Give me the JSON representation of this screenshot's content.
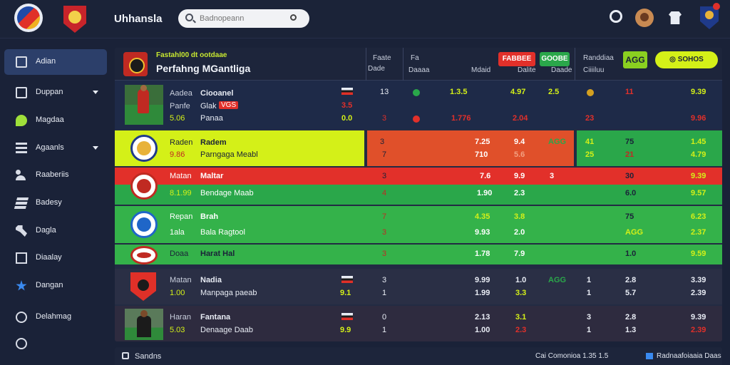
{
  "app": {
    "title": "Uhhansla"
  },
  "search": {
    "placeholder": "Badnopeann"
  },
  "icons": {
    "settings": "settings-icon",
    "avatar": "user-avatar",
    "kit": "shirt-icon",
    "club": "club-crest-icon",
    "search": "search-icon"
  },
  "colors": {
    "accent_yellow": "#d4f018",
    "accent_green": "#2aa74a",
    "accent_red": "#e2302a",
    "bg": "#1a2238"
  },
  "sidebar": {
    "items": [
      {
        "label": "Adian",
        "icon": "inbox-icon",
        "active": true
      },
      {
        "label": "Duppan",
        "icon": "box-icon",
        "expandable": true
      },
      {
        "label": "Magdaa",
        "icon": "tag-icon"
      },
      {
        "label": "Agaanls",
        "icon": "list-icon",
        "expandable": true
      },
      {
        "label": "Raaberiis",
        "icon": "users-icon"
      },
      {
        "label": "Badesy",
        "icon": "layers-icon"
      },
      {
        "label": "Dagla",
        "icon": "wrench-icon"
      },
      {
        "label": "Diaalay",
        "icon": "document-icon"
      },
      {
        "label": "Dangan",
        "icon": "star-icon"
      },
      {
        "label": "Delahmag",
        "icon": "chat-icon"
      }
    ]
  },
  "header": {
    "subtitle": "Fastahl00 dt ootdaae",
    "title": "Perfahng MGantliga",
    "col1": [
      "Faate",
      "Dade"
    ],
    "col2": [
      "Fa",
      "Daaaa"
    ],
    "col3": "Mdaid",
    "pill_red": "FABBEE",
    "pill_green": "GOOBE",
    "col4": [
      "Dalite",
      "Daade"
    ],
    "col5": [
      "Randdiaa",
      "Ciiiiluu"
    ],
    "agg_label": "AGG",
    "action_label": "SOHOS"
  },
  "rows": [
    {
      "name_a": "Aadea",
      "name_b": "Ciooanel",
      "sub_a": "Panfe",
      "sub_b": "Glak",
      "badge": "VGS",
      "meta_a": "5.06",
      "meta_b": "Panaa",
      "n1": "13",
      "n2": "3",
      "s1a": "1.3.5",
      "s1b": "4.97",
      "s1c": "2.5",
      "s2a": "1.776",
      "s2b": "2.04",
      "r1": "11",
      "r2": "9.39",
      "r3": "23",
      "r4": "9.96",
      "v1": "3.5",
      "v2": "0.0"
    },
    {
      "name_a": "Raden",
      "name_b": "Radem",
      "sub_a": "9.86",
      "sub_b": "Parngaga Meabl",
      "n1": "3",
      "n2": "7",
      "s1a": "7.25",
      "s1b": "9.4",
      "s1c": "AGG",
      "s2a": "710",
      "s2b": "5.6",
      "r0": "41",
      "r1": "75",
      "r2": "1.45",
      "r3": "25",
      "r4": "21",
      "r5": "4.79"
    },
    {
      "name_a": "Matan",
      "name_b": "Maltar",
      "sub_a": "8.1.99",
      "sub_b": "Bendage Maab",
      "n1": "3",
      "n2": "4",
      "s1a": "7.6",
      "s1b": "9.9",
      "s1c": "3",
      "s2a": "1.90",
      "s2b": "2.3",
      "r1": "30",
      "r2": "9.39",
      "r3": "6.0",
      "r4": "9.57"
    },
    {
      "name_a": "Repan",
      "name_b": "Brah",
      "sub_a": "1ala",
      "sub_b": "Bala Ragtool",
      "n1": "7",
      "n2": "3",
      "s1a": "4.35",
      "s1b": "3.8",
      "s2a": "9.93",
      "s2b": "2.0",
      "r1": "75",
      "r2": "6.23",
      "r3": "AGG",
      "r4": "2.37"
    },
    {
      "name_a": "Doaa",
      "name_b": "Harat Hal",
      "n1": "3",
      "s1a": "1.78",
      "s1b": "7.9",
      "r1": "1.0",
      "r2": "9.59"
    },
    {
      "name_a": "Matan",
      "name_b": "Nadia",
      "sub_a": "1.00",
      "sub_b": "Manpaga paeab",
      "v1": "9.1",
      "n1": "3",
      "n2": "1",
      "s1a": "9.99",
      "s1b": "1.0",
      "s1c": "AGG",
      "s2a": "1.99",
      "s2b": "3.3",
      "r0": "1",
      "r1": "2.8",
      "r2": "3.39",
      "r3": "1",
      "r4": "5.7",
      "r5": "2.39"
    },
    {
      "name_a": "Haran",
      "name_b": "Fantana",
      "sub_a": "5.03",
      "sub_b": "Denaage Daab",
      "v1": "9.9",
      "n1": "0",
      "n2": "1",
      "s1a": "2.13",
      "s1b": "3.1",
      "s2a": "1.00",
      "s2b": "2.3",
      "r0": "3",
      "r1": "2.8",
      "r2": "9.39",
      "r3": "1",
      "r4": "1.3",
      "r5": "2.39"
    }
  ],
  "footer": {
    "label": "Sandns",
    "stat": "Cai Comonioa 1.35 1.5",
    "right_label": "Radnaafoiaaia Daas"
  }
}
